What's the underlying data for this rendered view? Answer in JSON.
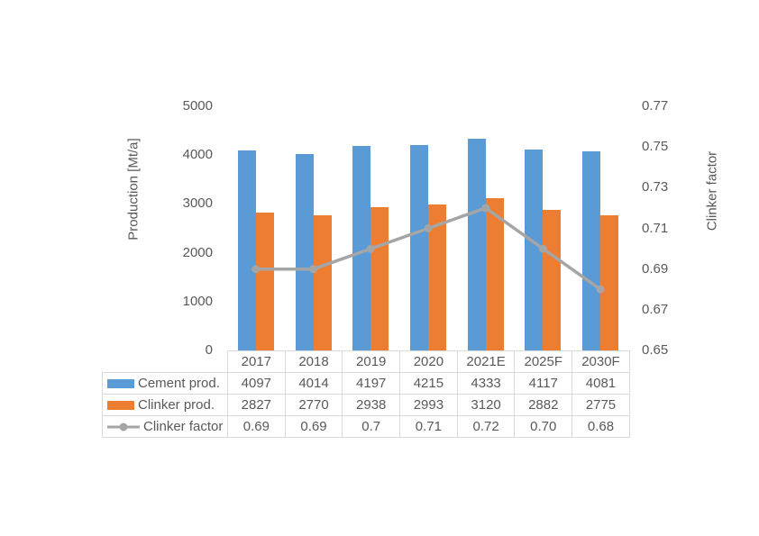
{
  "chart_data": {
    "type": "bar",
    "subtype": "bar-and-line-combo",
    "title": "",
    "categories": [
      "2017",
      "2018",
      "2019",
      "2020",
      "2021E",
      "2025F",
      "2030F"
    ],
    "series": [
      {
        "name": "Cement prod.",
        "chart_type": "bar",
        "axis": "left",
        "color": "#5B9BD5",
        "values": [
          4097,
          4014,
          4197,
          4215,
          4333,
          4117,
          4081
        ]
      },
      {
        "name": "Clinker prod.",
        "chart_type": "bar",
        "axis": "left",
        "color": "#ED7D31",
        "values": [
          2827,
          2770,
          2938,
          2993,
          3120,
          2882,
          2775
        ]
      },
      {
        "name": "Clinker factor",
        "chart_type": "line",
        "axis": "right",
        "color": "#A5A5A5",
        "values": [
          0.69,
          0.69,
          0.7,
          0.71,
          0.72,
          0.7,
          0.68
        ],
        "display_values": [
          "0.69",
          "0.69",
          "0.7",
          "0.71",
          "0.72",
          "0.70",
          "0.68"
        ]
      }
    ],
    "left_axis": {
      "title": "Production [Mt/a]",
      "min": 0,
      "max": 5000,
      "step": 1000,
      "tick_labels": [
        "5000",
        "4000",
        "3000",
        "2000",
        "1000",
        "0"
      ]
    },
    "right_axis": {
      "title": "Clinker factor",
      "min": 0.65,
      "max": 0.77,
      "step": 0.02,
      "tick_labels": [
        "0.77",
        "0.75",
        "0.73",
        "0.71",
        "0.69",
        "0.67",
        "0.65"
      ]
    },
    "grid": false,
    "legend_position": "data-table-left",
    "table_border_color": "#D9D9D9",
    "text_color": "#595959"
  }
}
